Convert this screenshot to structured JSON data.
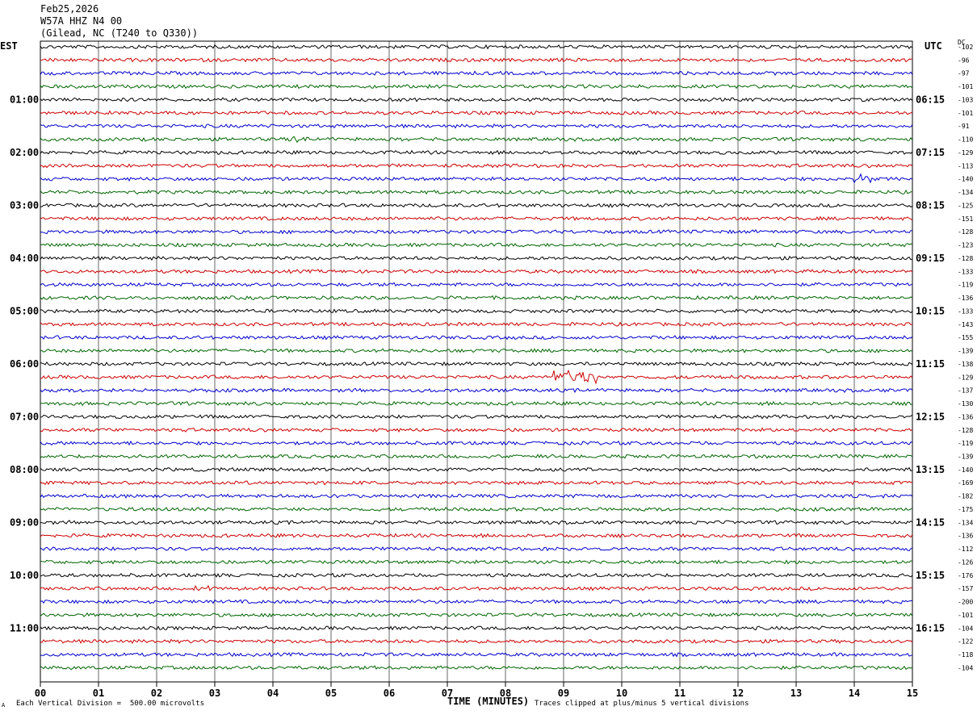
{
  "header": {
    "date": "Feb25,2026",
    "station": "W57A HHZ N4 00",
    "location": "(Gilead, NC (T240 to Q330))"
  },
  "left_tz": "EST",
  "right_tz": "UTC",
  "dc_label": "DC",
  "footer": {
    "scale_note": "Each Vertical Division =  500.00 microvolts",
    "clip_note": "Traces clipped at plus/minus 5 vertical divisions",
    "corner_mark": "A"
  },
  "colors": {
    "trace_cycle": [
      "#000000",
      "#cc0000",
      "#0000cc",
      "#006600"
    ],
    "grid": "#000000"
  },
  "chart_data": {
    "type": "line",
    "title": "",
    "xlabel": "TIME (MINUTES)",
    "ylabel": "",
    "x_ticks": [
      "00",
      "01",
      "02",
      "03",
      "04",
      "05",
      "06",
      "07",
      "08",
      "09",
      "10",
      "11",
      "12",
      "13",
      "14",
      "15"
    ],
    "xlim": [
      0,
      15
    ],
    "row_count": 48,
    "left_hour_labels": [
      {
        "row": 4,
        "label": "01:00"
      },
      {
        "row": 8,
        "label": "02:00"
      },
      {
        "row": 12,
        "label": "03:00"
      },
      {
        "row": 16,
        "label": "04:00"
      },
      {
        "row": 20,
        "label": "05:00"
      },
      {
        "row": 24,
        "label": "06:00"
      },
      {
        "row": 28,
        "label": "07:00"
      },
      {
        "row": 32,
        "label": "08:00"
      },
      {
        "row": 36,
        "label": "09:00"
      },
      {
        "row": 40,
        "label": "10:00"
      },
      {
        "row": 44,
        "label": "11:00"
      }
    ],
    "right_hour_labels": [
      {
        "row": 4,
        "label": "06:15"
      },
      {
        "row": 8,
        "label": "07:15"
      },
      {
        "row": 12,
        "label": "08:15"
      },
      {
        "row": 16,
        "label": "09:15"
      },
      {
        "row": 20,
        "label": "10:15"
      },
      {
        "row": 24,
        "label": "11:15"
      },
      {
        "row": 28,
        "label": "12:15"
      },
      {
        "row": 32,
        "label": "13:15"
      },
      {
        "row": 36,
        "label": "14:15"
      },
      {
        "row": 40,
        "label": "15:15"
      },
      {
        "row": 44,
        "label": "16:15"
      }
    ],
    "dc_offsets": [
      "-102",
      "-96",
      "-97",
      "-101",
      "-103",
      "-101",
      "-91",
      "-110",
      "-129",
      "-113",
      "-140",
      "-134",
      "-125",
      "-151",
      "-128",
      "-123",
      "-128",
      "-133",
      "-119",
      "-136",
      "-133",
      "-143",
      "-155",
      "-139",
      "-138",
      "-129",
      "-137",
      "-130",
      "-136",
      "-128",
      "-119",
      "-139",
      "-140",
      "-169",
      "-182",
      "-175",
      "-134",
      "-136",
      "-112",
      "-126",
      "-176",
      "-157",
      "-200",
      "-101",
      "-104",
      "-122",
      "-118",
      "-104"
    ],
    "events": [
      {
        "row": 25,
        "x_start": 8.8,
        "x_end": 9.6,
        "amplitude": 9
      },
      {
        "row": 10,
        "x_start": 14.0,
        "x_end": 14.3,
        "amplitude": 7
      },
      {
        "row": 7,
        "x_start": 4.3,
        "x_end": 4.6,
        "amplitude": 4
      },
      {
        "row": 41,
        "x_start": 2.6,
        "x_end": 3.0,
        "amplitude": 4
      }
    ]
  }
}
